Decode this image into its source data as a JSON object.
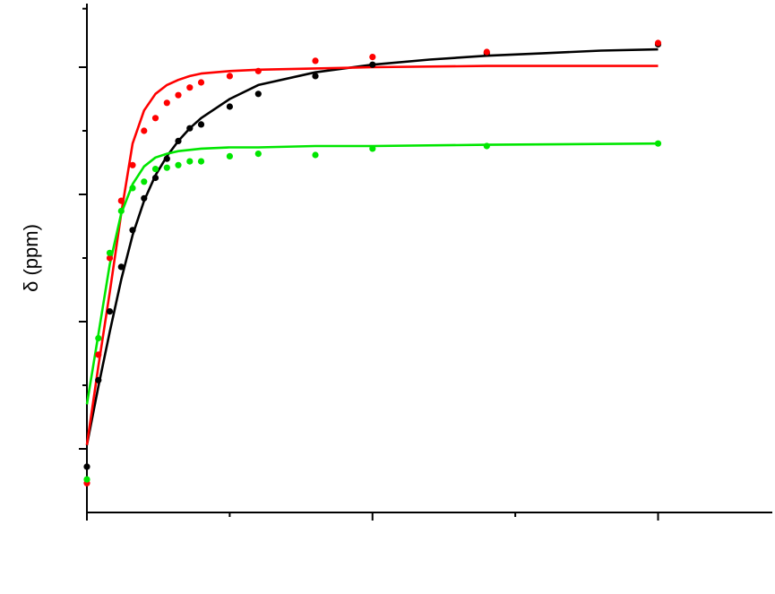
{
  "chart_data": {
    "type": "scatter",
    "ylabel": "δ (ppm)",
    "xlim": [
      0,
      1.2
    ],
    "ylim": [
      0,
      4
    ],
    "x_major_ticks": [
      0,
      0.5,
      1
    ],
    "x_minor_ticks": [
      0.25,
      0.75
    ],
    "y_major_ticks": [
      0.5,
      1.5,
      2.5,
      3.5
    ],
    "y_minor_ticks": [
      1,
      2,
      3,
      3.96
    ],
    "tick_labels_shown": false,
    "grid": false,
    "series": [
      {
        "color": "#000000",
        "points": {
          "x": [
            0,
            0.02,
            0.04,
            0.06,
            0.08,
            0.1,
            0.12,
            0.14,
            0.16,
            0.18,
            0.2,
            0.25,
            0.3,
            0.4,
            0.5,
            0.7,
            1.0
          ],
          "y": [
            0.36,
            1.04,
            1.58,
            1.93,
            2.22,
            2.47,
            2.63,
            2.78,
            2.92,
            3.02,
            3.05,
            3.19,
            3.29,
            3.43,
            3.52,
            3.61,
            3.68
          ]
        },
        "fit": {
          "x": [
            0,
            0.02,
            0.04,
            0.06,
            0.08,
            0.1,
            0.12,
            0.14,
            0.16,
            0.18,
            0.2,
            0.25,
            0.3,
            0.4,
            0.5,
            0.6,
            0.7,
            0.8,
            0.9,
            1.0
          ],
          "y": [
            0.53,
            0.99,
            1.42,
            1.83,
            2.18,
            2.45,
            2.65,
            2.8,
            2.92,
            3.02,
            3.1,
            3.25,
            3.36,
            3.46,
            3.52,
            3.56,
            3.59,
            3.61,
            3.63,
            3.64
          ]
        }
      },
      {
        "color": "#ff0000",
        "points": {
          "x": [
            0,
            0.02,
            0.04,
            0.06,
            0.08,
            0.1,
            0.12,
            0.14,
            0.16,
            0.18,
            0.2,
            0.25,
            0.3,
            0.4,
            0.5,
            0.7,
            1.0
          ],
          "y": [
            0.23,
            1.24,
            2.0,
            2.45,
            2.73,
            3.0,
            3.1,
            3.22,
            3.28,
            3.34,
            3.38,
            3.43,
            3.47,
            3.55,
            3.58,
            3.62,
            3.69
          ]
        },
        "fit": {
          "x": [
            0,
            0.02,
            0.04,
            0.06,
            0.08,
            0.1,
            0.12,
            0.14,
            0.16,
            0.18,
            0.2,
            0.25,
            0.3,
            0.4,
            0.5,
            0.7,
            1.0
          ],
          "y": [
            0.53,
            1.15,
            1.73,
            2.35,
            2.9,
            3.16,
            3.29,
            3.36,
            3.4,
            3.43,
            3.45,
            3.47,
            3.48,
            3.49,
            3.5,
            3.51,
            3.51
          ]
        }
      },
      {
        "color": "#00e600",
        "points": {
          "x": [
            0,
            0.02,
            0.04,
            0.06,
            0.08,
            0.1,
            0.12,
            0.14,
            0.16,
            0.18,
            0.2,
            0.25,
            0.3,
            0.4,
            0.5,
            0.7,
            1.0
          ],
          "y": [
            0.26,
            1.37,
            2.04,
            2.37,
            2.55,
            2.6,
            2.7,
            2.71,
            2.73,
            2.76,
            2.76,
            2.8,
            2.82,
            2.81,
            2.86,
            2.88,
            2.9
          ]
        },
        "fit": {
          "x": [
            0,
            0.02,
            0.04,
            0.06,
            0.08,
            0.1,
            0.12,
            0.14,
            0.16,
            0.18,
            0.2,
            0.25,
            0.3,
            0.4,
            0.5,
            0.7,
            1.0
          ],
          "y": [
            0.85,
            1.4,
            1.95,
            2.35,
            2.58,
            2.72,
            2.79,
            2.82,
            2.84,
            2.85,
            2.86,
            2.87,
            2.87,
            2.88,
            2.88,
            2.89,
            2.9
          ]
        }
      }
    ]
  }
}
